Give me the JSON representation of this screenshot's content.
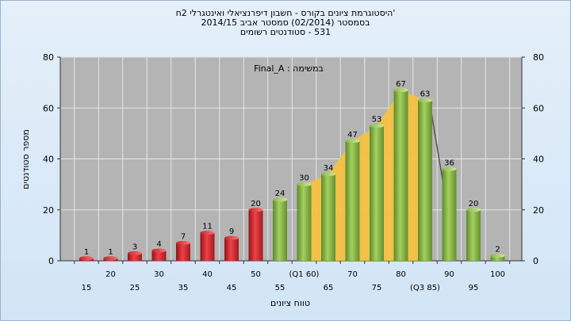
{
  "chart_data": {
    "type": "bar",
    "title_lines": [
      "'היסטוגרמת ציונים בקורס - חשבון דיפרנציאלי ואינטגרלי 2ח",
      "בסמסטר  (02/2014)  סמסטר אביב 2014/15",
      "531 - סטודנטים רשומים"
    ],
    "task_label": "במשימה : Final_A",
    "xlabel": "טווח ציונים",
    "ylabel": "מספר סטודנטים",
    "ylim": [
      0,
      80
    ],
    "yticks": [
      0,
      20,
      40,
      60,
      80
    ],
    "categories": [
      "15",
      "20",
      "25",
      "30",
      "35",
      "40",
      "45",
      "50",
      "55",
      "(Q1 60)",
      "65",
      "70",
      "75",
      "80",
      "(Q3 85)",
      "90",
      "95",
      "100"
    ],
    "values": [
      1,
      1,
      3,
      4,
      7,
      11,
      9,
      20,
      24,
      30,
      34,
      47,
      53,
      67,
      63,
      36,
      20,
      2
    ],
    "bar_colors": [
      "red",
      "red",
      "red",
      "red",
      "red",
      "red",
      "red",
      "red",
      "green",
      "green",
      "green",
      "green",
      "green",
      "green",
      "green",
      "green",
      "green",
      "green"
    ],
    "highlight_area": {
      "from_index": 9,
      "to_index": 14,
      "color": "#f7c23e"
    },
    "grid": true,
    "colors": {
      "red_bar": "#e8323a",
      "green_bar": "#8fc04a",
      "plot_bg": "#b4b4b4",
      "page_bg": "#d6e8f8"
    }
  }
}
